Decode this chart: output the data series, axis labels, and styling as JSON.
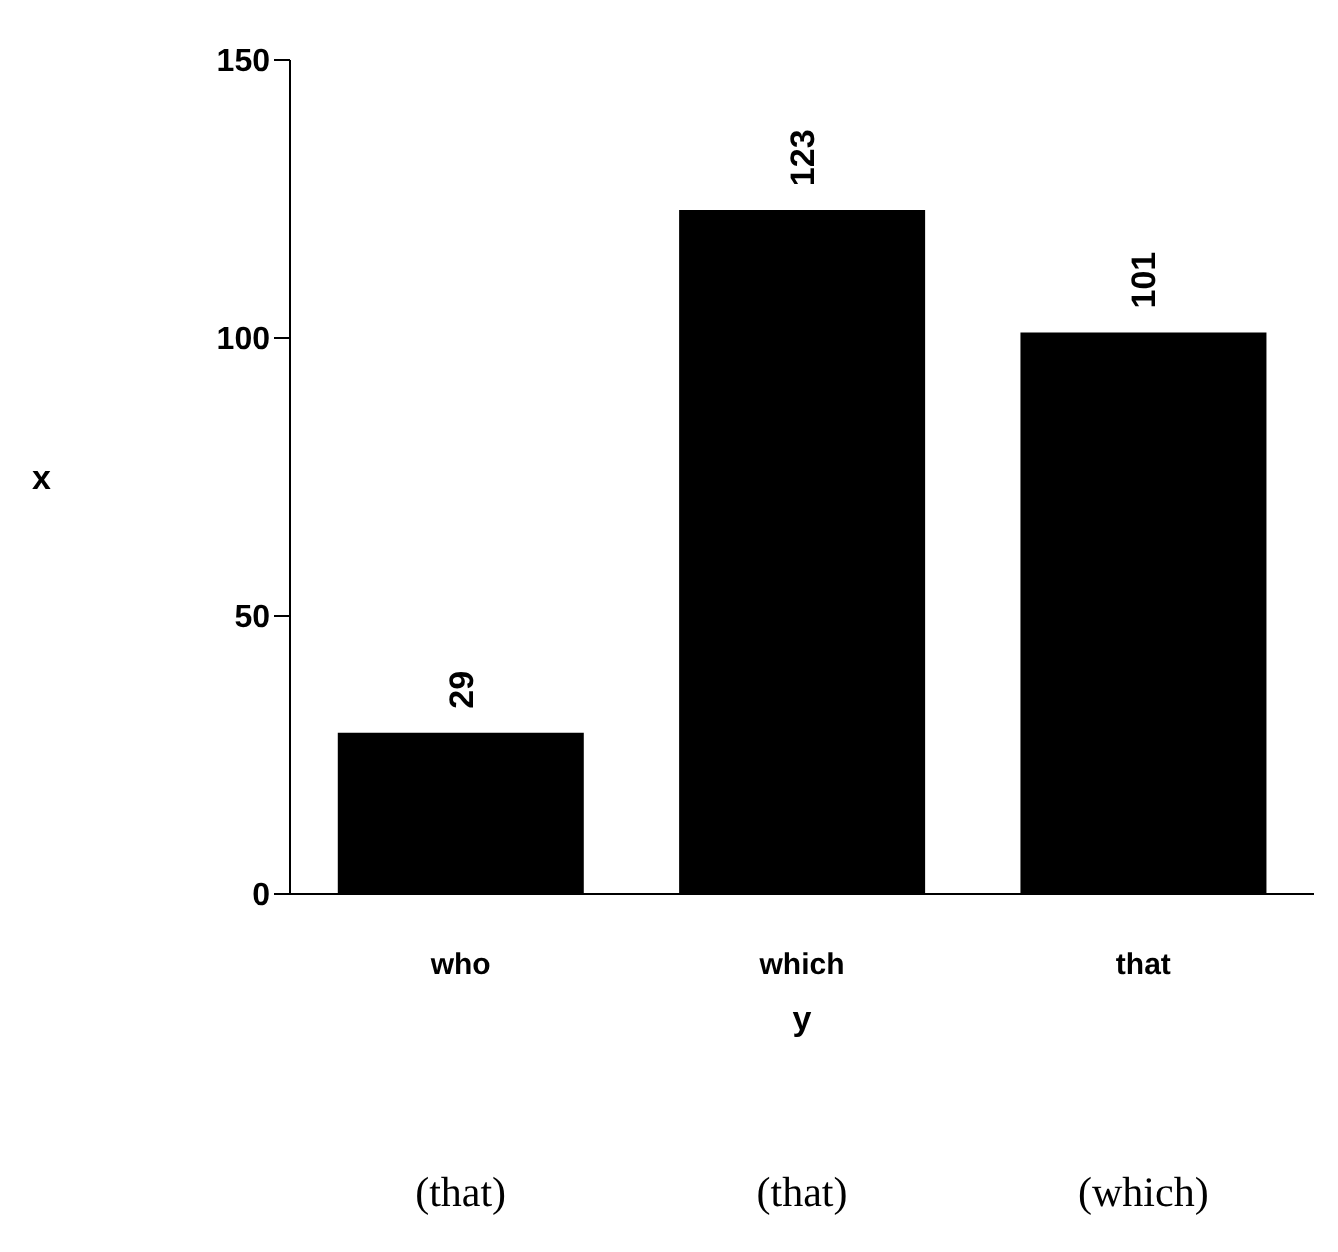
{
  "chart_data": {
    "type": "bar",
    "categories": [
      "who",
      "which",
      "that"
    ],
    "values": [
      29,
      123,
      101
    ],
    "color": "#000000",
    "ylim": [
      0,
      150
    ],
    "yticks": [
      0,
      50,
      100,
      150
    ],
    "xlabel": "y",
    "ylabel": "x",
    "data_labels": true,
    "grid": false,
    "legend": false,
    "annotations": [
      "(that)",
      "(that)",
      "(which)"
    ]
  }
}
